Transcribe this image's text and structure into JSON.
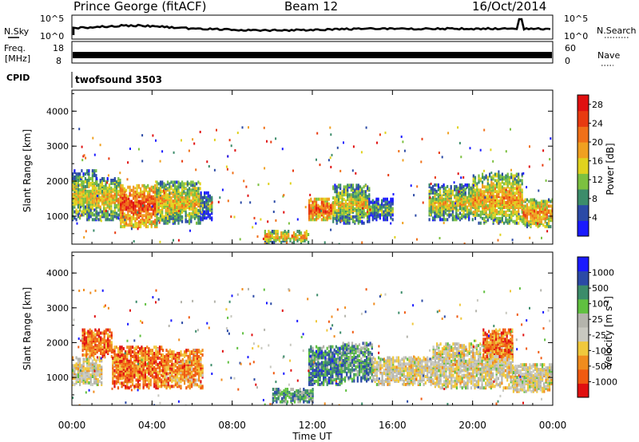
{
  "header": {
    "station": "Prince George (fitACF)",
    "beam": "Beam 12",
    "date": "16/Oct/2014"
  },
  "nsky_panel": {
    "left_label": "N.Sky",
    "right_label": "N.Search",
    "left_ticks": [
      "10^5",
      "10^0"
    ],
    "right_ticks": [
      "10^5",
      "10^0"
    ]
  },
  "freq_panel": {
    "left_label_line1": "Freq.",
    "left_label_line2": "[MHz]",
    "right_label": "Nave",
    "left_ticks": [
      "18",
      "8"
    ],
    "right_ticks": [
      "60",
      "0"
    ]
  },
  "cpid": {
    "label": "CPID",
    "value": "twofsound 3503"
  },
  "colors": {
    "power": [
      "#1a1aff",
      "#2b4aa6",
      "#3c8c6a",
      "#7cc040",
      "#e0d21e",
      "#f0a020",
      "#f07018",
      "#e83a10",
      "#e01010"
    ],
    "velocity": [
      "#e01010",
      "#f05a10",
      "#f08c1e",
      "#f0c83c",
      "#c8c8c0",
      "#b4b4ac",
      "#60c040",
      "#3c8c6a",
      "#2b4aa6",
      "#1a1aff"
    ]
  },
  "chart_data": [
    {
      "type": "heatmap",
      "name": "power",
      "ylabel": "Slant Range [km]",
      "xlabel": "Time UT",
      "x_ticks": [
        "00:00",
        "04:00",
        "08:00",
        "12:00",
        "16:00",
        "20:00",
        "00:00"
      ],
      "y_ticks": [
        "1000",
        "2000",
        "3000",
        "4000"
      ],
      "ylim": [
        200,
        4600
      ],
      "xlim_hours": [
        0,
        24
      ],
      "colorbar": {
        "label": "Power [dB]",
        "ticks": [
          "4",
          "8",
          "12",
          "16",
          "20",
          "24",
          "28"
        ],
        "range": [
          0,
          30
        ]
      },
      "regions": [
        {
          "t0": 0.0,
          "t1": 1.2,
          "r0": 900,
          "r1": 2300,
          "level": 0.55
        },
        {
          "t0": 1.2,
          "t1": 2.4,
          "r0": 900,
          "r1": 2100,
          "level": 0.6
        },
        {
          "t0": 2.4,
          "t1": 4.2,
          "r0": 700,
          "r1": 1900,
          "level": 0.85
        },
        {
          "t0": 4.2,
          "t1": 6.4,
          "r0": 800,
          "r1": 2000,
          "level": 0.6
        },
        {
          "t0": 6.4,
          "t1": 7.0,
          "r0": 900,
          "r1": 1700,
          "level": 0.35
        },
        {
          "t0": 9.6,
          "t1": 11.8,
          "r0": 250,
          "r1": 600,
          "level": 0.65
        },
        {
          "t0": 11.8,
          "t1": 13.0,
          "r0": 900,
          "r1": 1500,
          "level": 0.85
        },
        {
          "t0": 13.0,
          "t1": 14.8,
          "r0": 800,
          "r1": 1900,
          "level": 0.55
        },
        {
          "t0": 14.8,
          "t1": 16.0,
          "r0": 900,
          "r1": 1500,
          "level": 0.4
        },
        {
          "t0": 17.8,
          "t1": 20.0,
          "r0": 900,
          "r1": 1900,
          "level": 0.55
        },
        {
          "t0": 20.0,
          "t1": 22.5,
          "r0": 800,
          "r1": 2200,
          "level": 0.65
        },
        {
          "t0": 22.5,
          "t1": 24.0,
          "r0": 700,
          "r1": 1500,
          "level": 0.7
        }
      ]
    },
    {
      "type": "heatmap",
      "name": "velocity",
      "ylabel": "Slant Range [km]",
      "xlabel": "Time UT",
      "x_ticks": [
        "00:00",
        "04:00",
        "08:00",
        "12:00",
        "16:00",
        "20:00",
        "00:00"
      ],
      "y_ticks": [
        "1000",
        "2000",
        "3000",
        "4000"
      ],
      "ylim": [
        200,
        4600
      ],
      "xlim_hours": [
        0,
        24
      ],
      "colorbar": {
        "label": "Velocity [m s^-1]",
        "ticks": [
          "1000",
          "500",
          "100",
          "25",
          "-25",
          "-100",
          "-500",
          "-1000"
        ]
      },
      "regions": [
        {
          "t0": 0.0,
          "t1": 1.5,
          "r0": 800,
          "r1": 1600,
          "level": 0.45
        },
        {
          "t0": 0.5,
          "t1": 2.0,
          "r0": 1600,
          "r1": 2400,
          "level": 0.2
        },
        {
          "t0": 2.0,
          "t1": 4.5,
          "r0": 700,
          "r1": 1900,
          "level": 0.2
        },
        {
          "t0": 4.5,
          "t1": 6.5,
          "r0": 700,
          "r1": 1800,
          "level": 0.25
        },
        {
          "t0": 10.0,
          "t1": 12.0,
          "r0": 300,
          "r1": 700,
          "level": 0.7
        },
        {
          "t0": 11.8,
          "t1": 13.5,
          "r0": 800,
          "r1": 1900,
          "level": 0.75
        },
        {
          "t0": 13.5,
          "t1": 15.0,
          "r0": 900,
          "r1": 2000,
          "level": 0.7
        },
        {
          "t0": 15.0,
          "t1": 18.0,
          "r0": 800,
          "r1": 1600,
          "level": 0.45
        },
        {
          "t0": 18.0,
          "t1": 22.0,
          "r0": 700,
          "r1": 2000,
          "level": 0.45
        },
        {
          "t0": 20.5,
          "t1": 22.0,
          "r0": 1600,
          "r1": 2400,
          "level": 0.2
        },
        {
          "t0": 22.0,
          "t1": 24.0,
          "r0": 600,
          "r1": 1400,
          "level": 0.45
        }
      ]
    }
  ]
}
